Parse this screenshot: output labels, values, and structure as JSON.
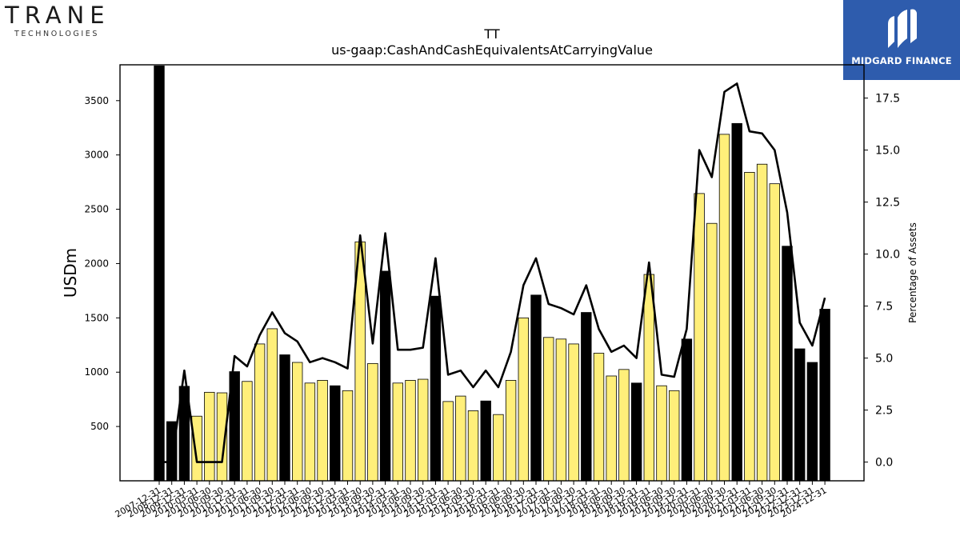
{
  "logos": {
    "left_word": "TRANE",
    "left_sub": "TECHNOLOGIES",
    "right_word": "MIDGARD FINANCE"
  },
  "chart_data": {
    "type": "bar",
    "title": "TT",
    "subtitle": "us-gaap:CashAndCashEquivalentsAtCarryingValue",
    "ylabel": "USDm",
    "y2label": "Percentage of Assets",
    "ylim": [
      0,
      3830
    ],
    "y2lim": [
      -0.9,
      19.1
    ],
    "yticks": [
      500,
      1000,
      1500,
      2000,
      2500,
      3000,
      3500
    ],
    "y2ticks": [
      0.0,
      2.5,
      5.0,
      7.5,
      10.0,
      12.5,
      15.0,
      17.5
    ],
    "bar_colors": {
      "annual": "#000000",
      "quarter": "#ffef7a"
    },
    "line_color": "#000000",
    "categories": [
      "2007-12-31",
      "2008-12-31",
      "2009-12-31",
      "2010-03-31",
      "2010-06-30",
      "2010-09-30",
      "2010-12-31",
      "2011-03-31",
      "2011-06-30",
      "2011-09-30",
      "2011-12-31",
      "2012-03-31",
      "2012-06-30",
      "2012-09-30",
      "2012-12-31",
      "2013-03-31",
      "2013-06-30",
      "2013-09-30",
      "2013-12-31",
      "2014-03-31",
      "2014-06-30",
      "2014-09-30",
      "2014-12-31",
      "2015-03-31",
      "2015-06-30",
      "2015-09-30",
      "2015-12-31",
      "2016-03-31",
      "2016-06-30",
      "2016-09-30",
      "2016-12-31",
      "2017-03-31",
      "2017-06-30",
      "2017-09-30",
      "2017-12-31",
      "2018-03-31",
      "2018-06-30",
      "2018-09-30",
      "2018-12-31",
      "2019-03-31",
      "2019-06-30",
      "2019-09-30",
      "2019-12-31",
      "2020-03-31",
      "2020-06-30",
      "2020-09-30",
      "2020-12-31",
      "2021-03-31",
      "2021-06-30",
      "2021-09-30",
      "2021-12-31",
      "2022-12-31",
      "2023-12-31",
      "2024-12-31"
    ],
    "annual": [
      true,
      true,
      true,
      false,
      false,
      false,
      true,
      false,
      false,
      false,
      true,
      false,
      false,
      false,
      true,
      false,
      false,
      false,
      true,
      false,
      false,
      false,
      true,
      false,
      false,
      false,
      true,
      false,
      false,
      false,
      true,
      false,
      false,
      false,
      true,
      false,
      false,
      false,
      true,
      false,
      false,
      false,
      true,
      false,
      false,
      false,
      true,
      false,
      false,
      false,
      true,
      true,
      true,
      true
    ],
    "values": [
      3820,
      545,
      870,
      595,
      815,
      810,
      1005,
      915,
      1260,
      1400,
      1160,
      1090,
      900,
      925,
      875,
      830,
      2200,
      1080,
      1930,
      900,
      925,
      935,
      1700,
      730,
      780,
      645,
      735,
      610,
      925,
      1500,
      1710,
      1320,
      1305,
      1260,
      1550,
      1175,
      965,
      1025,
      900,
      1900,
      875,
      830,
      1305,
      2645,
      2370,
      3190,
      3290,
      2840,
      2915,
      2735,
      2160,
      1215,
      1090,
      1580
    ],
    "pct_assets": [
      0.0,
      0.0,
      4.4,
      0.0,
      0.0,
      0.0,
      5.1,
      4.6,
      6.1,
      7.2,
      6.2,
      5.8,
      4.8,
      5.0,
      4.8,
      4.5,
      10.9,
      5.7,
      11.0,
      5.4,
      5.4,
      5.5,
      9.8,
      4.2,
      4.4,
      3.6,
      4.4,
      3.6,
      5.3,
      8.5,
      9.8,
      7.6,
      7.4,
      7.1,
      8.5,
      6.4,
      5.3,
      5.6,
      5.0,
      9.6,
      4.2,
      4.1,
      6.4,
      15.0,
      13.7,
      17.8,
      18.2,
      15.9,
      15.8,
      15.0,
      12.0,
      6.7,
      5.6,
      7.9
    ]
  }
}
